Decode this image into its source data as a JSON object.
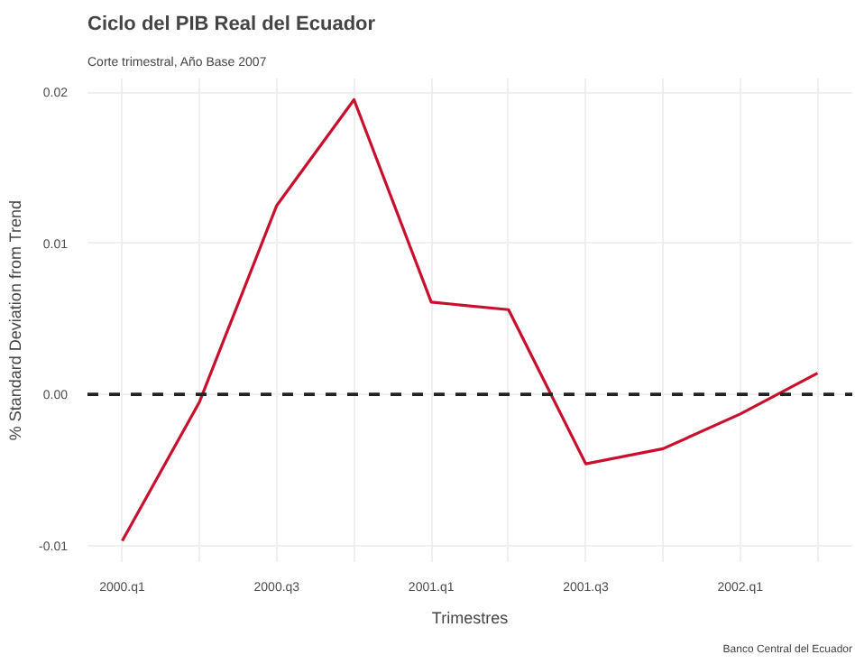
{
  "chart_data": {
    "type": "line",
    "title": "Ciclo del PIB Real del Ecuador",
    "subtitle": "Corte trimestral, Año Base 2007",
    "xlabel": "Trimestres",
    "ylabel": "% Standard Deviation from Trend",
    "categories": [
      "2000.q1",
      null,
      "2000.q3",
      null,
      "2001.q1",
      null,
      "2001.q3",
      null,
      "2002.q1",
      null
    ],
    "series": [
      {
        "color": "#c8102e",
        "values": [
          -0.0097,
          -0.0005,
          0.0125,
          0.0195,
          0.0061,
          0.0056,
          -0.0046,
          -0.0036,
          -0.0013,
          0.0014
        ]
      }
    ],
    "ylim": [
      -0.0111,
      0.0209
    ],
    "yticks": [
      {
        "value": -0.01,
        "label": "-0.01"
      },
      {
        "value": 0,
        "label": "0.00"
      },
      {
        "value": 0.01,
        "label": "0.01"
      },
      {
        "value": 0.02,
        "label": "0.02"
      }
    ],
    "ref_lines": [
      {
        "axis": "y",
        "value": 0,
        "color": "#222222",
        "line_style": "dashed"
      }
    ],
    "annotations": [
      "Banco Central del Ecuador"
    ],
    "grid": true,
    "marker": "none",
    "line_style": "solid"
  }
}
